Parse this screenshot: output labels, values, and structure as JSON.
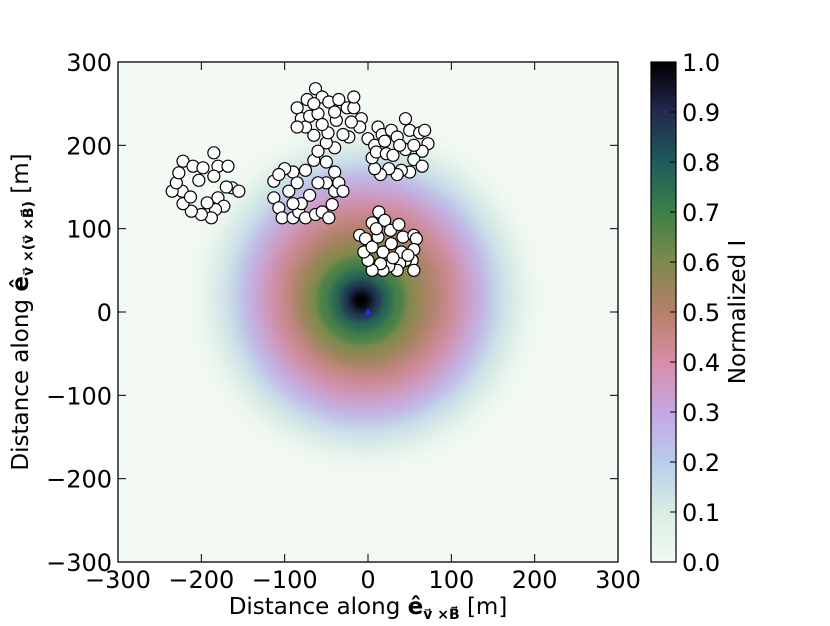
{
  "chart_data": {
    "type": "heatmap",
    "title": "",
    "xlabel_prefix": "Distance along ",
    "xlabel_vector": "ê",
    "xlabel_subscript": "v⃗ ×B⃗",
    "xlabel_unit": " [m]",
    "ylabel_prefix": "Distance along ",
    "ylabel_vector": "ê",
    "ylabel_subscript": "v⃗ ×(v⃗ ×B⃗)",
    "ylabel_unit": " [m]",
    "xlim": [
      -300,
      300
    ],
    "ylim": [
      -300,
      300
    ],
    "x_ticks": [
      -300,
      -200,
      -100,
      0,
      100,
      200,
      300
    ],
    "y_ticks": [
      -300,
      -200,
      -100,
      0,
      100,
      200,
      300
    ],
    "x_tick_labels": [
      "−300",
      "−200",
      "−100",
      "0",
      "100",
      "200",
      "300"
    ],
    "y_tick_labels": [
      "−300",
      "−200",
      "−100",
      "0",
      "100",
      "200",
      "300"
    ],
    "colorbar": {
      "label": "Normalized I",
      "range": [
        0.0,
        1.0
      ],
      "ticks": [
        0.0,
        0.1,
        0.2,
        0.3,
        0.4,
        0.5,
        0.6,
        0.7,
        0.8,
        0.9,
        1.0
      ],
      "tick_labels": [
        "0.0",
        "0.1",
        "0.2",
        "0.3",
        "0.4",
        "0.5",
        "0.6",
        "0.7",
        "0.8",
        "0.9",
        "1.0"
      ],
      "colormap": "cubehelix-reversed",
      "stops": [
        {
          "v": 0.0,
          "color": "#f3faf3"
        },
        {
          "v": 0.1,
          "color": "#d9eee2"
        },
        {
          "v": 0.2,
          "color": "#b7cdeb"
        },
        {
          "v": 0.3,
          "color": "#c5a6e4"
        },
        {
          "v": 0.4,
          "color": "#d88ea6"
        },
        {
          "v": 0.5,
          "color": "#b6806a"
        },
        {
          "v": 0.6,
          "color": "#7e8a4c"
        },
        {
          "v": 0.7,
          "color": "#3c7f45"
        },
        {
          "v": 0.8,
          "color": "#1e5c5a"
        },
        {
          "v": 0.9,
          "color": "#24284e"
        },
        {
          "v": 1.0,
          "color": "#000000"
        }
      ]
    },
    "intensity_peak": {
      "x": -8,
      "y": 14,
      "value": 1.0
    },
    "core_marker": {
      "x": 0,
      "y": 0,
      "color": "#1f2fd9"
    },
    "antenna_stations": [
      {
        "x": -222,
        "y": 181
      },
      {
        "x": -210,
        "y": 175
      },
      {
        "x": -198,
        "y": 173
      },
      {
        "x": -185,
        "y": 191
      },
      {
        "x": -180,
        "y": 175
      },
      {
        "x": -168,
        "y": 175
      },
      {
        "x": -163,
        "y": 149
      },
      {
        "x": -155,
        "y": 145
      },
      {
        "x": -170,
        "y": 150
      },
      {
        "x": -180,
        "y": 137
      },
      {
        "x": -173,
        "y": 127
      },
      {
        "x": -183,
        "y": 123
      },
      {
        "x": -188,
        "y": 113
      },
      {
        "x": -200,
        "y": 117
      },
      {
        "x": -212,
        "y": 121
      },
      {
        "x": -222,
        "y": 130
      },
      {
        "x": -223,
        "y": 145
      },
      {
        "x": -235,
        "y": 145
      },
      {
        "x": -230,
        "y": 155
      },
      {
        "x": -227,
        "y": 167
      },
      {
        "x": -213,
        "y": 138
      },
      {
        "x": -193,
        "y": 131
      },
      {
        "x": -185,
        "y": 163
      },
      {
        "x": -203,
        "y": 158
      },
      {
        "x": -113,
        "y": 157
      },
      {
        "x": -113,
        "y": 137
      },
      {
        "x": -107,
        "y": 125
      },
      {
        "x": -103,
        "y": 113
      },
      {
        "x": -90,
        "y": 113
      },
      {
        "x": -83,
        "y": 120
      },
      {
        "x": -75,
        "y": 113
      },
      {
        "x": -63,
        "y": 117
      },
      {
        "x": -55,
        "y": 120
      },
      {
        "x": -47,
        "y": 113
      },
      {
        "x": -43,
        "y": 129
      },
      {
        "x": -40,
        "y": 145
      },
      {
        "x": -50,
        "y": 155
      },
      {
        "x": -40,
        "y": 168
      },
      {
        "x": -50,
        "y": 180
      },
      {
        "x": -65,
        "y": 182
      },
      {
        "x": -75,
        "y": 170
      },
      {
        "x": -90,
        "y": 168
      },
      {
        "x": -100,
        "y": 172
      },
      {
        "x": -107,
        "y": 165
      },
      {
        "x": -95,
        "y": 145
      },
      {
        "x": -85,
        "y": 155
      },
      {
        "x": -70,
        "y": 140
      },
      {
        "x": -60,
        "y": 155
      },
      {
        "x": -35,
        "y": 155
      },
      {
        "x": -30,
        "y": 145
      },
      {
        "x": -80,
        "y": 130
      },
      {
        "x": -90,
        "y": 130
      },
      {
        "x": -85,
        "y": 245
      },
      {
        "x": -80,
        "y": 232
      },
      {
        "x": -73,
        "y": 255
      },
      {
        "x": -63,
        "y": 268
      },
      {
        "x": -55,
        "y": 258
      },
      {
        "x": -47,
        "y": 252
      },
      {
        "x": -35,
        "y": 255
      },
      {
        "x": -25,
        "y": 245
      },
      {
        "x": -17,
        "y": 245
      },
      {
        "x": -17,
        "y": 258
      },
      {
        "x": -8,
        "y": 232
      },
      {
        "x": -10,
        "y": 222
      },
      {
        "x": -20,
        "y": 228
      },
      {
        "x": -23,
        "y": 210
      },
      {
        "x": -30,
        "y": 213
      },
      {
        "x": -40,
        "y": 197
      },
      {
        "x": -50,
        "y": 203
      },
      {
        "x": -60,
        "y": 193
      },
      {
        "x": -65,
        "y": 212
      },
      {
        "x": -75,
        "y": 222
      },
      {
        "x": -85,
        "y": 222
      },
      {
        "x": -70,
        "y": 235
      },
      {
        "x": -60,
        "y": 238
      },
      {
        "x": -38,
        "y": 230
      },
      {
        "x": -48,
        "y": 215
      },
      {
        "x": -55,
        "y": 225
      },
      {
        "x": -65,
        "y": 250
      },
      {
        "x": -40,
        "y": 240
      },
      {
        "x": 0,
        "y": 208
      },
      {
        "x": 8,
        "y": 200
      },
      {
        "x": 12,
        "y": 222
      },
      {
        "x": 17,
        "y": 213
      },
      {
        "x": 28,
        "y": 218
      },
      {
        "x": 35,
        "y": 210
      },
      {
        "x": 45,
        "y": 232
      },
      {
        "x": 50,
        "y": 218
      },
      {
        "x": 62,
        "y": 215
      },
      {
        "x": 68,
        "y": 218
      },
      {
        "x": 72,
        "y": 202
      },
      {
        "x": 65,
        "y": 193
      },
      {
        "x": 55,
        "y": 183
      },
      {
        "x": 65,
        "y": 175
      },
      {
        "x": 50,
        "y": 168
      },
      {
        "x": 40,
        "y": 170
      },
      {
        "x": 35,
        "y": 165
      },
      {
        "x": 25,
        "y": 172
      },
      {
        "x": 15,
        "y": 165
      },
      {
        "x": 8,
        "y": 172
      },
      {
        "x": 5,
        "y": 185
      },
      {
        "x": 10,
        "y": 192
      },
      {
        "x": 22,
        "y": 190
      },
      {
        "x": 30,
        "y": 188
      },
      {
        "x": 45,
        "y": 195
      },
      {
        "x": 55,
        "y": 200
      },
      {
        "x": 38,
        "y": 200
      },
      {
        "x": 20,
        "y": 205
      },
      {
        "x": 5,
        "y": 107
      },
      {
        "x": 13,
        "y": 120
      },
      {
        "x": 20,
        "y": 110
      },
      {
        "x": 27,
        "y": 98
      },
      {
        "x": 37,
        "y": 105
      },
      {
        "x": 42,
        "y": 90
      },
      {
        "x": 55,
        "y": 92
      },
      {
        "x": 58,
        "y": 88
      },
      {
        "x": 55,
        "y": 75
      },
      {
        "x": 53,
        "y": 62
      },
      {
        "x": 55,
        "y": 50
      },
      {
        "x": 45,
        "y": 62
      },
      {
        "x": 38,
        "y": 58
      },
      {
        "x": 35,
        "y": 50
      },
      {
        "x": 25,
        "y": 55
      },
      {
        "x": 18,
        "y": 50
      },
      {
        "x": 15,
        "y": 58
      },
      {
        "x": 5,
        "y": 50
      },
      {
        "x": 0,
        "y": 62
      },
      {
        "x": -5,
        "y": 72
      },
      {
        "x": -10,
        "y": 92
      },
      {
        "x": -3,
        "y": 88
      },
      {
        "x": 5,
        "y": 78
      },
      {
        "x": 12,
        "y": 90
      },
      {
        "x": 18,
        "y": 72
      },
      {
        "x": 28,
        "y": 82
      },
      {
        "x": 40,
        "y": 72
      },
      {
        "x": 48,
        "y": 68
      },
      {
        "x": 10,
        "y": 100
      },
      {
        "x": 30,
        "y": 65
      }
    ]
  }
}
